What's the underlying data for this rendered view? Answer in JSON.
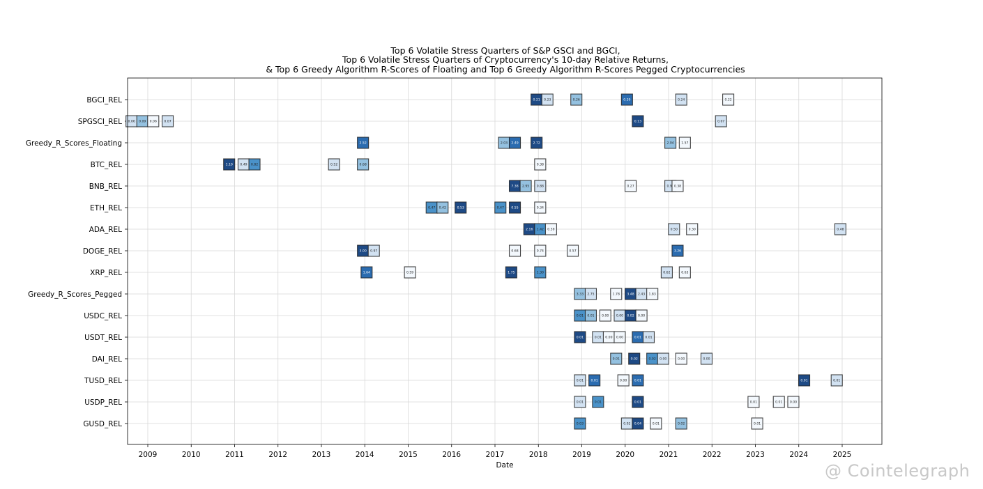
{
  "chart_data": {
    "type": "heatmap",
    "title": [
      "Top 6 Volatile Stress Quarters of S&P GSCI and BGCI,",
      "Top 6 Volatile Stress Quarters of Cryptocurrency's 10-day Relative Returns,",
      "& Top 6 Greedy Algorithm R-Scores of Floating and Top 6 Greedy Algorithm R-Scores Pegged Cryptocurrencies"
    ],
    "xlabel": "Date",
    "ylabel": "",
    "xlim": [
      "2008-07",
      "2025-11"
    ],
    "x_ticks": [
      "2009",
      "2010",
      "2011",
      "2012",
      "2013",
      "2014",
      "2015",
      "2016",
      "2017",
      "2018",
      "2019",
      "2020",
      "2021",
      "2022",
      "2023",
      "2024",
      "2025"
    ],
    "grid": true,
    "colormap": [
      "#f3f8fd",
      "#d2e2f2",
      "#94c1e0",
      "#4a92c9",
      "#2b6cb0",
      "#1e4a85"
    ],
    "rows": [
      {
        "name": "BGCI_REL",
        "points": [
          [
            "2017-12",
            "0.21",
            5
          ],
          [
            "2018-03",
            "0.23",
            1
          ],
          [
            "2018-11",
            "0.26",
            2
          ],
          [
            "2020-01",
            "0.29",
            4
          ],
          [
            "2021-04",
            "0.24",
            1
          ],
          [
            "2022-05",
            "0.22",
            0
          ]
        ]
      },
      {
        "name": "SPGSCI_REL",
        "points": [
          [
            "2008-08",
            "0.06",
            1
          ],
          [
            "2008-11",
            "0.09",
            2
          ],
          [
            "2009-02",
            "0.06",
            0
          ],
          [
            "2009-06",
            "0.07",
            1
          ],
          [
            "2020-04",
            "0.13",
            5
          ],
          [
            "2022-03",
            "0.07",
            1
          ]
        ]
      },
      {
        "name": "Greedy_R_Scores_Floating",
        "points": [
          [
            "2013-12",
            "2.52",
            4
          ],
          [
            "2017-03",
            "2.03",
            2
          ],
          [
            "2017-06",
            "2.49",
            4
          ],
          [
            "2017-12",
            "2.72",
            5
          ],
          [
            "2021-01",
            "2.04",
            2
          ],
          [
            "2021-05",
            "1.57",
            0
          ]
        ]
      },
      {
        "name": "BTC_REL",
        "points": [
          [
            "2010-11",
            "1.10",
            5
          ],
          [
            "2011-03",
            "0.49",
            1
          ],
          [
            "2011-06",
            "0.82",
            3
          ],
          [
            "2013-04",
            "0.52",
            1
          ],
          [
            "2013-12",
            "0.68",
            2
          ],
          [
            "2018-01",
            "0.38",
            0
          ]
        ]
      },
      {
        "name": "BNB_REL",
        "points": [
          [
            "2017-06",
            "7.38",
            5
          ],
          [
            "2017-09",
            "2.95",
            2
          ],
          [
            "2018-01",
            "0.88",
            1
          ],
          [
            "2020-02",
            "0.27",
            0
          ],
          [
            "2021-01",
            "0.96",
            1
          ],
          [
            "2021-03",
            "0.38",
            0
          ]
        ]
      },
      {
        "name": "ETH_REL",
        "points": [
          [
            "2015-07",
            "0.47",
            3
          ],
          [
            "2015-10",
            "0.42",
            2
          ],
          [
            "2016-03",
            "0.53",
            5
          ],
          [
            "2017-02",
            "0.47",
            3
          ],
          [
            "2017-06",
            "0.55",
            5
          ],
          [
            "2018-01",
            "0.34",
            0
          ]
        ]
      },
      {
        "name": "ADA_REL",
        "points": [
          [
            "2017-10",
            "2.16",
            5
          ],
          [
            "2018-01",
            "1.42",
            3
          ],
          [
            "2018-04",
            "0.39",
            0
          ],
          [
            "2021-02",
            "0.50",
            1
          ],
          [
            "2021-07",
            "0.30",
            0
          ],
          [
            "2024-12",
            "0.48",
            1
          ]
        ]
      },
      {
        "name": "DOGE_REL",
        "points": [
          [
            "2013-12",
            "3.00",
            5
          ],
          [
            "2014-03",
            "0.97",
            1
          ],
          [
            "2017-06",
            "0.68",
            0
          ],
          [
            "2018-01",
            "0.74",
            0
          ],
          [
            "2018-10",
            "0.57",
            0
          ],
          [
            "2021-03",
            "3.26",
            4
          ]
        ]
      },
      {
        "name": "XRP_REL",
        "points": [
          [
            "2014-01",
            "1.64",
            4
          ],
          [
            "2015-01",
            "0.59",
            0
          ],
          [
            "2017-05",
            "1.75",
            5
          ],
          [
            "2018-01",
            "1.30",
            3
          ],
          [
            "2020-12",
            "0.62",
            1
          ],
          [
            "2021-05",
            "0.63",
            0
          ]
        ]
      },
      {
        "name": "Greedy_R_Scores_Pegged",
        "points": [
          [
            "2018-12",
            "3.33",
            2
          ],
          [
            "2019-03",
            "2.75",
            1
          ],
          [
            "2019-10",
            "1.78",
            0
          ],
          [
            "2020-02",
            "3.48",
            5
          ],
          [
            "2020-05",
            "2.43",
            1
          ],
          [
            "2020-08",
            "1.83",
            0
          ]
        ]
      },
      {
        "name": "USDC_REL",
        "points": [
          [
            "2018-12",
            "0.01",
            3
          ],
          [
            "2019-03",
            "0.01",
            2
          ],
          [
            "2019-07",
            "0.00",
            0
          ],
          [
            "2019-11",
            "0.00",
            1
          ],
          [
            "2020-02",
            "0.02",
            5
          ],
          [
            "2020-05",
            "0.00",
            0
          ]
        ]
      },
      {
        "name": "USDT_REL",
        "points": [
          [
            "2018-12",
            "0.01",
            5
          ],
          [
            "2019-05",
            "0.01",
            1
          ],
          [
            "2019-08",
            "0.00",
            0
          ],
          [
            "2019-11",
            "0.00",
            0
          ],
          [
            "2020-04",
            "0.01",
            4
          ],
          [
            "2020-07",
            "0.01",
            1
          ]
        ]
      },
      {
        "name": "DAI_REL",
        "points": [
          [
            "2019-10",
            "0.01",
            2
          ],
          [
            "2020-03",
            "0.02",
            5
          ],
          [
            "2020-08",
            "0.02",
            3
          ],
          [
            "2020-11",
            "0.00",
            1
          ],
          [
            "2021-04",
            "0.00",
            0
          ],
          [
            "2021-11",
            "0.00",
            1
          ]
        ]
      },
      {
        "name": "TUSD_REL",
        "points": [
          [
            "2018-12",
            "0.01",
            1
          ],
          [
            "2019-04",
            "0.01",
            4
          ],
          [
            "2019-12",
            "0.00",
            0
          ],
          [
            "2020-04",
            "0.01",
            4
          ],
          [
            "2024-02",
            "0.01",
            5
          ],
          [
            "2024-11",
            "0.01",
            1
          ]
        ]
      },
      {
        "name": "USDP_REL",
        "points": [
          [
            "2018-12",
            "0.01",
            1
          ],
          [
            "2019-05",
            "0.01",
            3
          ],
          [
            "2020-04",
            "0.01",
            5
          ],
          [
            "2022-12",
            "0.01",
            0
          ],
          [
            "2023-07",
            "0.01",
            0
          ],
          [
            "2023-11",
            "0.00",
            0
          ]
        ]
      },
      {
        "name": "GUSD_REL",
        "points": [
          [
            "2018-12",
            "0.03",
            3
          ],
          [
            "2020-01",
            "0.02",
            1
          ],
          [
            "2020-04",
            "0.04",
            5
          ],
          [
            "2020-09",
            "0.01",
            0
          ],
          [
            "2021-04",
            "0.02",
            2
          ],
          [
            "2023-01",
            "0.01",
            0
          ]
        ]
      }
    ]
  },
  "watermark": "@ Cointelegraph"
}
